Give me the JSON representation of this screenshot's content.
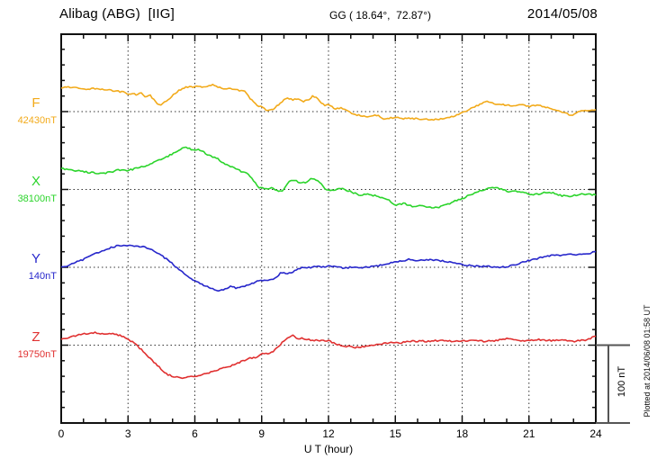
{
  "header": {
    "station_title": "Alibag (ABG)  [IIG]",
    "geo_coords": "GG ( 18.64°,  72.87°)",
    "date": "2014/05/08"
  },
  "x_axis": {
    "title": "U T (hour)",
    "tick_labels": [
      "0",
      "3",
      "6",
      "9",
      "12",
      "15",
      "18",
      "21",
      "24"
    ]
  },
  "scale_bar": {
    "label": "100 nT",
    "span_nT": 100
  },
  "footer_note": "Plotted at 2014/06/08 01:58 UT",
  "colors": {
    "frame": "#111111",
    "grid": "#333333",
    "scale_bar": "#555555",
    "F": "#F2AA1A",
    "X": "#2BD42B",
    "Y": "#2727CB",
    "Z": "#E03030"
  },
  "chart_data": {
    "type": "line",
    "title": "Alibag (ABG) [IIG] magnetogram, 2014/05/08",
    "xlabel": "U T (hour)",
    "x_range": [
      0,
      24
    ],
    "x_major_tick_hours": 3,
    "x_minor_tick_hours": 1,
    "y_division_nT": 100,
    "y_minor_tick_nT": 20,
    "grid": "dotted vertical lines every 3 h, dotted horizontal baseline per component",
    "legend_position": "left margin, one label per trace baseline",
    "series": [
      {
        "name": "F",
        "baseline_label": "42430nT",
        "baseline_nT": 42430,
        "color_key": "F",
        "points_hour_offset_nT": [
          [
            0,
            31
          ],
          [
            0.4,
            31
          ],
          [
            0.8,
            30
          ],
          [
            1.2,
            29
          ],
          [
            1.6,
            30
          ],
          [
            2,
            28
          ],
          [
            2.4,
            27
          ],
          [
            2.8,
            25
          ],
          [
            3,
            23
          ],
          [
            3.4,
            22
          ],
          [
            3.6,
            24
          ],
          [
            3.8,
            18
          ],
          [
            4,
            21
          ],
          [
            4.3,
            10
          ],
          [
            4.5,
            9
          ],
          [
            4.9,
            18
          ],
          [
            5.3,
            28
          ],
          [
            5.6,
            31
          ],
          [
            6,
            32
          ],
          [
            6.4,
            32
          ],
          [
            6.8,
            34
          ],
          [
            7.2,
            30
          ],
          [
            7.6,
            29
          ],
          [
            8,
            27
          ],
          [
            8.2,
            28
          ],
          [
            8.5,
            16
          ],
          [
            8.8,
            8
          ],
          [
            9,
            6
          ],
          [
            9.2,
            2
          ],
          [
            9.5,
            2
          ],
          [
            9.7,
            8
          ],
          [
            10,
            15
          ],
          [
            10.2,
            17
          ],
          [
            10.4,
            15
          ],
          [
            10.6,
            17
          ],
          [
            10.9,
            13
          ],
          [
            11.1,
            15
          ],
          [
            11.3,
            20
          ],
          [
            11.5,
            17
          ],
          [
            11.8,
            8
          ],
          [
            12,
            9
          ],
          [
            12.3,
            3
          ],
          [
            12.6,
            5
          ],
          [
            13,
            -2
          ],
          [
            13.4,
            -5
          ],
          [
            13.8,
            -6
          ],
          [
            14.2,
            -5
          ],
          [
            14.5,
            -10
          ],
          [
            14.7,
            -8
          ],
          [
            15,
            -8
          ],
          [
            15.5,
            -9
          ],
          [
            16,
            -9
          ],
          [
            16.5,
            -10
          ],
          [
            16.9,
            -10
          ],
          [
            17.3,
            -9
          ],
          [
            17.7,
            -5
          ],
          [
            18.1,
            0
          ],
          [
            18.5,
            5
          ],
          [
            19,
            12
          ],
          [
            19.2,
            13
          ],
          [
            19.5,
            10
          ],
          [
            19.8,
            9
          ],
          [
            20.2,
            8
          ],
          [
            20.6,
            9
          ],
          [
            21,
            7
          ],
          [
            21.4,
            8
          ],
          [
            21.8,
            5
          ],
          [
            22.2,
            2
          ],
          [
            22.6,
            -2
          ],
          [
            22.9,
            -5
          ],
          [
            23.2,
            0
          ],
          [
            23.5,
            2
          ],
          [
            24,
            2
          ]
        ]
      },
      {
        "name": "X",
        "baseline_label": "38100nT",
        "baseline_nT": 38100,
        "color_key": "X",
        "points_hour_offset_nT": [
          [
            0,
            27
          ],
          [
            0.4,
            25
          ],
          [
            0.8,
            24
          ],
          [
            1.2,
            22
          ],
          [
            1.6,
            21
          ],
          [
            1.8,
            20
          ],
          [
            2,
            21
          ],
          [
            2.3,
            23
          ],
          [
            2.6,
            25
          ],
          [
            3,
            24
          ],
          [
            3.4,
            28
          ],
          [
            3.8,
            30
          ],
          [
            4.2,
            35
          ],
          [
            4.6,
            40
          ],
          [
            5,
            46
          ],
          [
            5.3,
            51
          ],
          [
            5.5,
            54
          ],
          [
            5.8,
            52
          ],
          [
            6,
            50
          ],
          [
            6.2,
            51
          ],
          [
            6.5,
            46
          ],
          [
            6.8,
            42
          ],
          [
            7,
            40
          ],
          [
            7.2,
            35
          ],
          [
            7.5,
            30
          ],
          [
            7.8,
            27
          ],
          [
            8.1,
            23
          ],
          [
            8.4,
            20
          ],
          [
            8.6,
            12
          ],
          [
            8.9,
            2
          ],
          [
            9.2,
            1
          ],
          [
            9.4,
            2
          ],
          [
            9.6,
            0
          ],
          [
            9.8,
            -3
          ],
          [
            10,
            0
          ],
          [
            10.2,
            10
          ],
          [
            10.5,
            12
          ],
          [
            10.7,
            8
          ],
          [
            11,
            9
          ],
          [
            11.3,
            15
          ],
          [
            11.6,
            9
          ],
          [
            11.9,
            0
          ],
          [
            12.2,
            -1
          ],
          [
            12.6,
            2
          ],
          [
            13,
            -3
          ],
          [
            13.4,
            -7
          ],
          [
            13.8,
            -6
          ],
          [
            14.2,
            -9
          ],
          [
            14.6,
            -12
          ],
          [
            15,
            -20
          ],
          [
            15.4,
            -18
          ],
          [
            15.8,
            -22
          ],
          [
            16.2,
            -21
          ],
          [
            16.6,
            -23
          ],
          [
            16.9,
            -23
          ],
          [
            17.3,
            -20
          ],
          [
            17.7,
            -14
          ],
          [
            18,
            -12
          ],
          [
            18.4,
            -6
          ],
          [
            18.8,
            -2
          ],
          [
            19.2,
            2
          ],
          [
            19.5,
            3
          ],
          [
            19.8,
            0
          ],
          [
            20.1,
            -3
          ],
          [
            20.4,
            -2
          ],
          [
            20.8,
            -5
          ],
          [
            21.2,
            -7
          ],
          [
            21.6,
            -5
          ],
          [
            21.9,
            -3
          ],
          [
            22.3,
            -7
          ],
          [
            22.7,
            -9
          ],
          [
            23,
            -8
          ],
          [
            23.4,
            -6
          ],
          [
            24,
            -7
          ]
        ]
      },
      {
        "name": "Y",
        "baseline_label": "140nT",
        "baseline_nT": 140,
        "color_key": "Y",
        "points_hour_offset_nT": [
          [
            0,
            0
          ],
          [
            0.3,
            2
          ],
          [
            0.6,
            6
          ],
          [
            1,
            10
          ],
          [
            1.4,
            16
          ],
          [
            1.8,
            21
          ],
          [
            2.2,
            25
          ],
          [
            2.6,
            28
          ],
          [
            3,
            28
          ],
          [
            3.3,
            27
          ],
          [
            3.6,
            27
          ],
          [
            3.9,
            24
          ],
          [
            4.2,
            21
          ],
          [
            4.5,
            15
          ],
          [
            4.8,
            9
          ],
          [
            5.1,
            2
          ],
          [
            5.4,
            -5
          ],
          [
            5.7,
            -12
          ],
          [
            6,
            -17
          ],
          [
            6.3,
            -22
          ],
          [
            6.6,
            -25
          ],
          [
            7,
            -30
          ],
          [
            7.3,
            -29
          ],
          [
            7.6,
            -25
          ],
          [
            7.9,
            -27
          ],
          [
            8.2,
            -24
          ],
          [
            8.5,
            -22
          ],
          [
            8.8,
            -18
          ],
          [
            9,
            -17
          ],
          [
            9.3,
            -16
          ],
          [
            9.6,
            -14
          ],
          [
            9.8,
            -9
          ],
          [
            9.9,
            -6
          ],
          [
            10.1,
            -9
          ],
          [
            10.3,
            -7
          ],
          [
            10.6,
            -3
          ],
          [
            10.9,
            0
          ],
          [
            11.2,
            0
          ],
          [
            11.5,
            1
          ],
          [
            11.8,
            0
          ],
          [
            12.1,
            2
          ],
          [
            12.4,
            0
          ],
          [
            12.7,
            -1
          ],
          [
            13,
            0
          ],
          [
            13.3,
            -1
          ],
          [
            13.6,
            0
          ],
          [
            14,
            1
          ],
          [
            14.4,
            3
          ],
          [
            14.8,
            6
          ],
          [
            15.2,
            8
          ],
          [
            15.6,
            10
          ],
          [
            16,
            9
          ],
          [
            16.4,
            10
          ],
          [
            16.8,
            9
          ],
          [
            17.2,
            8
          ],
          [
            17.6,
            6
          ],
          [
            18,
            3
          ],
          [
            18.4,
            2
          ],
          [
            18.8,
            1
          ],
          [
            19.2,
            1
          ],
          [
            19.6,
            0
          ],
          [
            20,
            1
          ],
          [
            20.4,
            3
          ],
          [
            20.8,
            7
          ],
          [
            21.2,
            10
          ],
          [
            21.6,
            13
          ],
          [
            22,
            15
          ],
          [
            22.4,
            15
          ],
          [
            22.8,
            17
          ],
          [
            23.2,
            16
          ],
          [
            23.6,
            17
          ],
          [
            24,
            20
          ]
        ]
      },
      {
        "name": "Z",
        "baseline_label": "19750nT",
        "baseline_nT": 19750,
        "color_key": "Z",
        "points_hour_offset_nT": [
          [
            0,
            7
          ],
          [
            0.3,
            9
          ],
          [
            0.6,
            12
          ],
          [
            0.9,
            14
          ],
          [
            1.2,
            15
          ],
          [
            1.5,
            16
          ],
          [
            1.8,
            15
          ],
          [
            2.1,
            15
          ],
          [
            2.4,
            14
          ],
          [
            2.7,
            12
          ],
          [
            3,
            8
          ],
          [
            3.3,
            2
          ],
          [
            3.6,
            -6
          ],
          [
            3.9,
            -14
          ],
          [
            4.2,
            -23
          ],
          [
            4.5,
            -31
          ],
          [
            4.8,
            -38
          ],
          [
            5.1,
            -41
          ],
          [
            5.4,
            -42
          ],
          [
            5.7,
            -41
          ],
          [
            6,
            -40
          ],
          [
            6.3,
            -38
          ],
          [
            6.6,
            -36
          ],
          [
            6.9,
            -33
          ],
          [
            7.2,
            -30
          ],
          [
            7.5,
            -28
          ],
          [
            7.8,
            -25
          ],
          [
            8.1,
            -21
          ],
          [
            8.4,
            -17
          ],
          [
            8.6,
            -16
          ],
          [
            8.8,
            -15
          ],
          [
            9.1,
            -10
          ],
          [
            9.3,
            -12
          ],
          [
            9.6,
            -6
          ],
          [
            9.8,
            -1
          ],
          [
            10,
            6
          ],
          [
            10.2,
            9
          ],
          [
            10.4,
            12
          ],
          [
            10.6,
            8
          ],
          [
            10.8,
            9
          ],
          [
            11.1,
            7
          ],
          [
            11.4,
            6
          ],
          [
            11.7,
            6
          ],
          [
            12,
            6
          ],
          [
            12.3,
            2
          ],
          [
            12.6,
            -1
          ],
          [
            12.9,
            -2
          ],
          [
            13.2,
            -3
          ],
          [
            13.5,
            -2
          ],
          [
            13.8,
            -1
          ],
          [
            14.1,
            1
          ],
          [
            14.4,
            2
          ],
          [
            14.8,
            3
          ],
          [
            15.2,
            3
          ],
          [
            15.6,
            5
          ],
          [
            16,
            5
          ],
          [
            16.5,
            5
          ],
          [
            17,
            6
          ],
          [
            17.5,
            5
          ],
          [
            18,
            6
          ],
          [
            18.5,
            6
          ],
          [
            19,
            5
          ],
          [
            19.5,
            6
          ],
          [
            20,
            8
          ],
          [
            20.3,
            7
          ],
          [
            20.7,
            6
          ],
          [
            21,
            6
          ],
          [
            21.5,
            7
          ],
          [
            22,
            6
          ],
          [
            22.5,
            6
          ],
          [
            23,
            5
          ],
          [
            23.4,
            6
          ],
          [
            23.7,
            8
          ],
          [
            24,
            12
          ]
        ]
      }
    ]
  }
}
